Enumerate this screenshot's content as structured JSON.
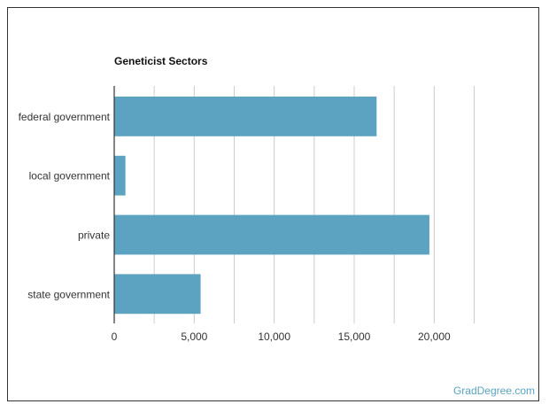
{
  "page": {
    "watermark": "GradDegree.com"
  },
  "colors": {
    "bar": "#5ba3c0",
    "grid": "#cccccc",
    "axis": "#333333",
    "text": "#333333",
    "watermark": "#5ba3c0"
  },
  "chart_data": {
    "type": "bar",
    "orientation": "horizontal",
    "title": "Geneticist Sectors",
    "xlabel": "",
    "ylabel": "",
    "categories": [
      "federal government",
      "local government",
      "private",
      "state government"
    ],
    "values": [
      16400,
      700,
      19700,
      5400
    ],
    "xlim": [
      0,
      22500
    ],
    "ticks": [
      0,
      5000,
      10000,
      15000,
      20000
    ],
    "tick_labels": [
      "0",
      "5,000",
      "10,000",
      "15,000",
      "20,000"
    ],
    "grid": true,
    "legend": "none"
  }
}
